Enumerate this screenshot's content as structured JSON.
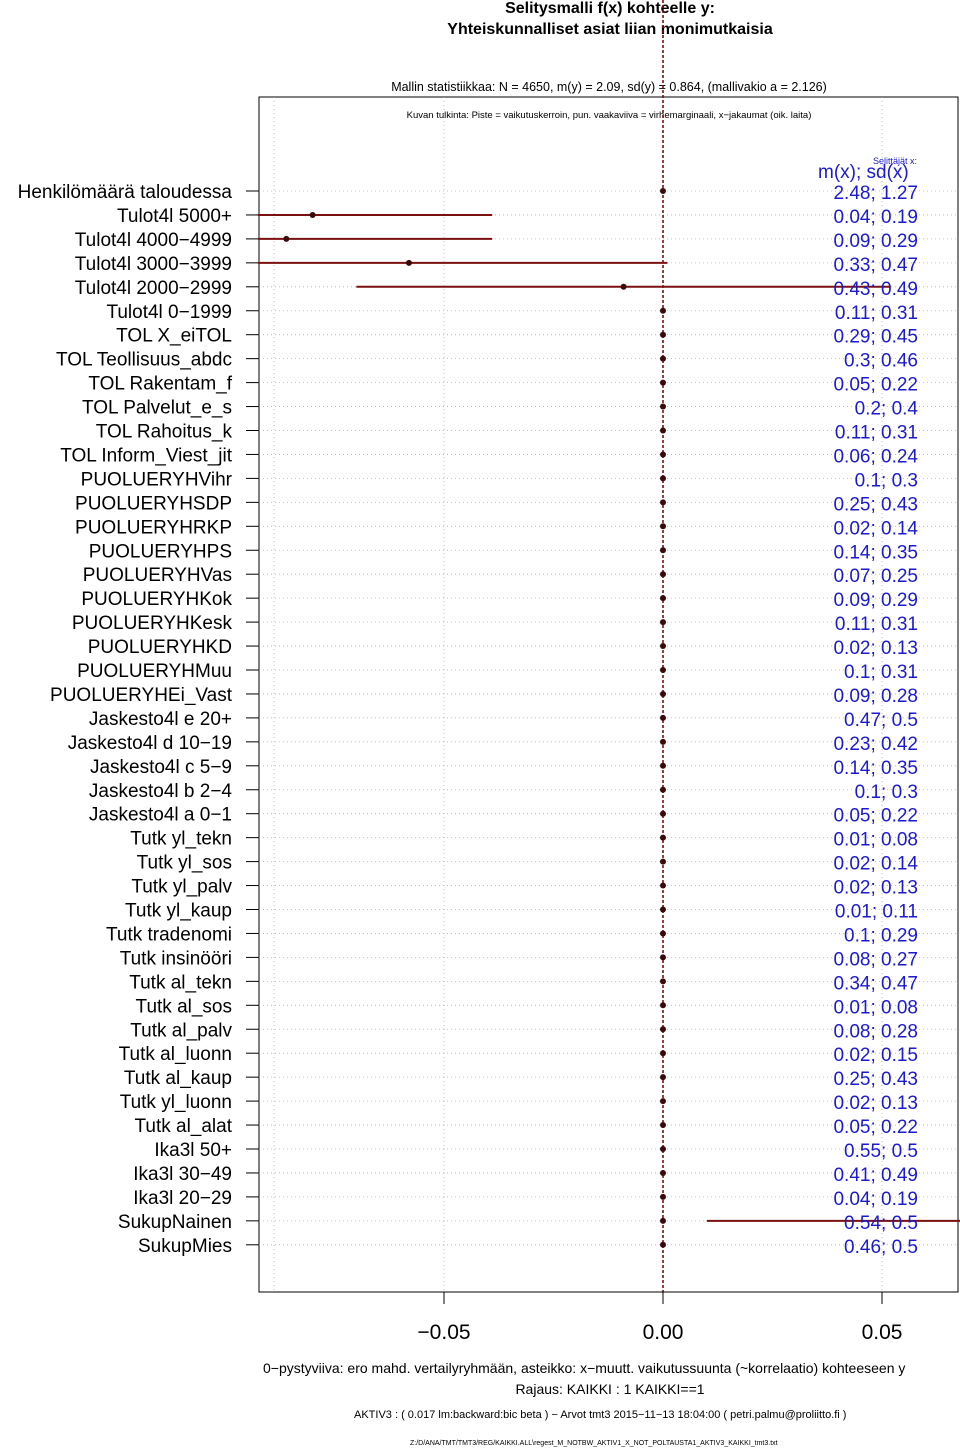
{
  "chart_data": {
    "type": "dot-interval",
    "title": "Selitysmalli f(x) kohteelle y:",
    "subtitle": "Yhteiskunnalliset asiat liian monimutkaisia",
    "stats_line": "Mallin statistiikkaa: N = 4650, m(y) = 2.09, sd(y) = 0.864, (mallivakio a = 2.126)",
    "interpretation_line": "Kuvan tulkinta: Piste = vaikutuskerroin, pun. vaakaviiva = virhemarginaali, x−jakaumat (oik. laita)",
    "explanatory_header": "Selittäjät x:",
    "mx_sd_header": "m(x); sd(x)",
    "x_ticks": [
      "−0.05",
      "0.00",
      "0.05"
    ],
    "x_tick_values": [
      -0.05,
      0.0,
      0.05
    ],
    "xlim": [
      -0.0925,
      0.0685
    ],
    "grid": true,
    "variables": [
      {
        "label": "Henkilömäärä taloudessa",
        "coef": 0.0,
        "lo": null,
        "hi": null,
        "mx_sd": "2.48; 1.27"
      },
      {
        "label": "Tulot4l 5000+",
        "coef": -0.08,
        "lo": -0.0925,
        "hi": -0.039,
        "mx_sd": "0.04; 0.19"
      },
      {
        "label": "Tulot4l 4000−4999",
        "coef": -0.086,
        "lo": -0.0925,
        "hi": -0.039,
        "mx_sd": "0.09; 0.29"
      },
      {
        "label": "Tulot4l 3000−3999",
        "coef": -0.058,
        "lo": -0.0925,
        "hi": 0.001,
        "mx_sd": "0.33; 0.47"
      },
      {
        "label": "Tulot4l 2000−2999",
        "coef": -0.009,
        "lo": -0.07,
        "hi": 0.052,
        "mx_sd": "0.43; 0.49"
      },
      {
        "label": "Tulot4l 0−1999",
        "coef": 0.0,
        "lo": null,
        "hi": null,
        "mx_sd": "0.11; 0.31"
      },
      {
        "label": "TOL X_eiTOL",
        "coef": 0.0,
        "lo": null,
        "hi": null,
        "mx_sd": "0.29; 0.45"
      },
      {
        "label": "TOL Teollisuus_abdc",
        "coef": 0.0,
        "lo": null,
        "hi": null,
        "mx_sd": "0.3; 0.46"
      },
      {
        "label": "TOL Rakentam_f",
        "coef": 0.0,
        "lo": null,
        "hi": null,
        "mx_sd": "0.05; 0.22"
      },
      {
        "label": "TOL Palvelut_e_s",
        "coef": 0.0,
        "lo": null,
        "hi": null,
        "mx_sd": "0.2; 0.4"
      },
      {
        "label": "TOL Rahoitus_k",
        "coef": 0.0,
        "lo": null,
        "hi": null,
        "mx_sd": "0.11; 0.31"
      },
      {
        "label": "TOL Inform_Viest_jit",
        "coef": 0.0,
        "lo": null,
        "hi": null,
        "mx_sd": "0.06; 0.24"
      },
      {
        "label": "PUOLUERYHVihr",
        "coef": 0.0,
        "lo": null,
        "hi": null,
        "mx_sd": "0.1; 0.3"
      },
      {
        "label": "PUOLUERYHSDP",
        "coef": 0.0,
        "lo": null,
        "hi": null,
        "mx_sd": "0.25; 0.43"
      },
      {
        "label": "PUOLUERYHRKP",
        "coef": 0.0,
        "lo": null,
        "hi": null,
        "mx_sd": "0.02; 0.14"
      },
      {
        "label": "PUOLUERYHPS",
        "coef": 0.0,
        "lo": null,
        "hi": null,
        "mx_sd": "0.14; 0.35"
      },
      {
        "label": "PUOLUERYHVas",
        "coef": 0.0,
        "lo": null,
        "hi": null,
        "mx_sd": "0.07; 0.25"
      },
      {
        "label": "PUOLUERYHKok",
        "coef": 0.0,
        "lo": null,
        "hi": null,
        "mx_sd": "0.09; 0.29"
      },
      {
        "label": "PUOLUERYHKesk",
        "coef": 0.0,
        "lo": null,
        "hi": null,
        "mx_sd": "0.11; 0.31"
      },
      {
        "label": "PUOLUERYHKD",
        "coef": 0.0,
        "lo": null,
        "hi": null,
        "mx_sd": "0.02; 0.13"
      },
      {
        "label": "PUOLUERYHMuu",
        "coef": 0.0,
        "lo": null,
        "hi": null,
        "mx_sd": "0.1; 0.31"
      },
      {
        "label": "PUOLUERYHEi_Vast",
        "coef": 0.0,
        "lo": null,
        "hi": null,
        "mx_sd": "0.09; 0.28"
      },
      {
        "label": "Jaskesto4l e 20+",
        "coef": 0.0,
        "lo": null,
        "hi": null,
        "mx_sd": "0.47; 0.5"
      },
      {
        "label": "Jaskesto4l d 10−19",
        "coef": 0.0,
        "lo": null,
        "hi": null,
        "mx_sd": "0.23; 0.42"
      },
      {
        "label": "Jaskesto4l c 5−9",
        "coef": 0.0,
        "lo": null,
        "hi": null,
        "mx_sd": "0.14; 0.35"
      },
      {
        "label": "Jaskesto4l b 2−4",
        "coef": 0.0,
        "lo": null,
        "hi": null,
        "mx_sd": "0.1; 0.3"
      },
      {
        "label": "Jaskesto4l a 0−1",
        "coef": 0.0,
        "lo": null,
        "hi": null,
        "mx_sd": "0.05; 0.22"
      },
      {
        "label": "Tutk yl_tekn",
        "coef": 0.0,
        "lo": null,
        "hi": null,
        "mx_sd": "0.01; 0.08"
      },
      {
        "label": "Tutk yl_sos",
        "coef": 0.0,
        "lo": null,
        "hi": null,
        "mx_sd": "0.02; 0.14"
      },
      {
        "label": "Tutk yl_palv",
        "coef": 0.0,
        "lo": null,
        "hi": null,
        "mx_sd": "0.02; 0.13"
      },
      {
        "label": "Tutk yl_kaup",
        "coef": 0.0,
        "lo": null,
        "hi": null,
        "mx_sd": "0.01; 0.11"
      },
      {
        "label": "Tutk tradenomi",
        "coef": 0.0,
        "lo": null,
        "hi": null,
        "mx_sd": "0.1; 0.29"
      },
      {
        "label": "Tutk insinööri",
        "coef": 0.0,
        "lo": null,
        "hi": null,
        "mx_sd": "0.08; 0.27"
      },
      {
        "label": "Tutk al_tekn",
        "coef": 0.0,
        "lo": null,
        "hi": null,
        "mx_sd": "0.34; 0.47"
      },
      {
        "label": "Tutk al_sos",
        "coef": 0.0,
        "lo": null,
        "hi": null,
        "mx_sd": "0.01; 0.08"
      },
      {
        "label": "Tutk al_palv",
        "coef": 0.0,
        "lo": null,
        "hi": null,
        "mx_sd": "0.08; 0.28"
      },
      {
        "label": "Tutk al_luonn",
        "coef": 0.0,
        "lo": null,
        "hi": null,
        "mx_sd": "0.02; 0.15"
      },
      {
        "label": "Tutk al_kaup",
        "coef": 0.0,
        "lo": null,
        "hi": null,
        "mx_sd": "0.25; 0.43"
      },
      {
        "label": "Tutk yl_luonn",
        "coef": 0.0,
        "lo": null,
        "hi": null,
        "mx_sd": "0.02; 0.13"
      },
      {
        "label": "Tutk al_alat",
        "coef": 0.0,
        "lo": null,
        "hi": null,
        "mx_sd": "0.05; 0.22"
      },
      {
        "label": "Ika3l 50+",
        "coef": 0.0,
        "lo": null,
        "hi": null,
        "mx_sd": "0.55; 0.5"
      },
      {
        "label": "Ika3l 30−49",
        "coef": 0.0,
        "lo": null,
        "hi": null,
        "mx_sd": "0.41; 0.49"
      },
      {
        "label": "Ika3l 20−29",
        "coef": 0.0,
        "lo": null,
        "hi": null,
        "mx_sd": "0.04; 0.19"
      },
      {
        "label": "SukupNainen",
        "coef": 0.0,
        "lo": 0.01,
        "hi": 0.0685,
        "mx_sd": "0.54; 0.5"
      },
      {
        "label": "SukupMies",
        "coef": 0.0,
        "lo": null,
        "hi": null,
        "mx_sd": "0.46; 0.5"
      }
    ],
    "footer_lines": [
      "0−pystyviiva: ero mahd. vertailyryhmään, asteikko: x−muutt. vaikutussuunta (~korrelaatio) kohteeseen y",
      "Rajaus: KAIKKI : 1  KAIKKI==1",
      "AKTIV3 : ( 0.017 lm:backward:bic beta )  − Arvot tmt3 2015−11−13 18:04:00 ( petri.palmu@proliitto.fi )",
      "Z:/D/ANA/TMT/TMT3/REG/KAIKKI.ALL\\regest_M_NOTBW_AKTIV1_X_NOT_POLTAUSTA1_AKTIV3_KAIKKI_tmt3.txt"
    ],
    "colors": {
      "interval": "#7a1010",
      "point": "#3a0a0a",
      "mxsd_text": "#1a1ad0",
      "zero_line": "#7a1010",
      "grid": "#b0b0b0"
    }
  }
}
